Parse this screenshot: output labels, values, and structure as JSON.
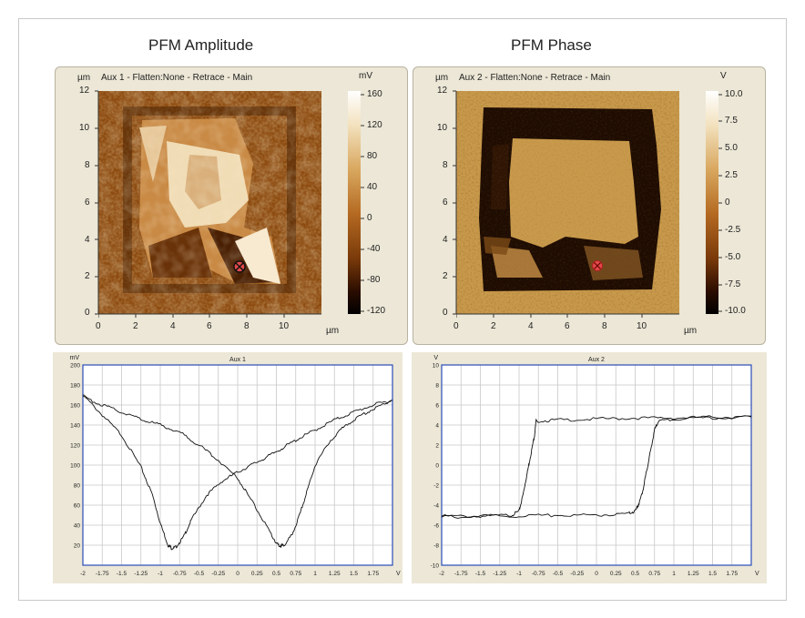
{
  "titles": {
    "left": "PFM Amplitude",
    "right": "PFM Phase"
  },
  "left_image": {
    "unit_label": "µm",
    "header": "Aux 1  -  Flatten:None  -  Retrace  -  Main",
    "cbar_unit": "mV",
    "cbar_ticks": [
      "160",
      "120",
      "80",
      "40",
      "0",
      "-40",
      "-80",
      "-120"
    ],
    "yticks": [
      "12",
      "10",
      "8",
      "6",
      "4",
      "2",
      "0"
    ],
    "xticks": [
      "0",
      "2",
      "4",
      "6",
      "8",
      "10"
    ],
    "x_unit": "µm",
    "marker_icon": "crosshair-marker-icon"
  },
  "right_image": {
    "unit_label": "µm",
    "header": "Aux 2  -  Flatten:None  -  Retrace  -  Main",
    "cbar_unit": "V",
    "cbar_ticks": [
      "10.0",
      "7.5",
      "5.0",
      "2.5",
      "0",
      "-2.5",
      "-5.0",
      "-7.5",
      "-10.0"
    ],
    "yticks": [
      "12",
      "10",
      "8",
      "6",
      "4",
      "2",
      "0"
    ],
    "xticks": [
      "0",
      "2",
      "4",
      "6",
      "8",
      "10"
    ],
    "x_unit": "µm",
    "marker_icon": "crosshair-marker-icon"
  },
  "chart_data": [
    {
      "type": "line",
      "title": "Aux 1",
      "ylabel": "mV",
      "xlabel": "V",
      "xlim": [
        -2,
        2
      ],
      "ylim": [
        0,
        200
      ],
      "xticks": [
        "-2",
        "-1.75",
        "-1.5",
        "-1.25",
        "-1",
        "-0.75",
        "-0.5",
        "-0.25",
        "0",
        "0.25",
        "0.5",
        "0.75",
        "1",
        "1.25",
        "1.5",
        "1.75"
      ],
      "yticks": [
        "200",
        "180",
        "160",
        "140",
        "120",
        "100",
        "80",
        "60",
        "40",
        "20"
      ],
      "series": [
        {
          "x": [
            -2,
            -1.75,
            -1.5,
            -1.25,
            -1.1,
            -1.0,
            -0.9,
            -0.85,
            -0.8,
            -0.7,
            -0.6,
            -0.4,
            -0.2,
            0,
            0.2,
            0.4,
            0.6,
            0.8,
            1.0,
            1.25,
            1.5,
            1.75,
            2
          ],
          "y": [
            170,
            150,
            130,
            98,
            70,
            42,
            20,
            17,
            18,
            28,
            45,
            70,
            84,
            93,
            101,
            109,
            118,
            127,
            135,
            145,
            153,
            160,
            165
          ]
        },
        {
          "x": [
            -2,
            -1.75,
            -1.5,
            -1.25,
            -1.0,
            -0.75,
            -0.5,
            -0.25,
            0,
            0.2,
            0.4,
            0.5,
            0.55,
            0.6,
            0.7,
            0.8,
            0.9,
            1.0,
            1.2,
            1.4,
            1.6,
            1.8,
            2
          ],
          "y": [
            168,
            160,
            153,
            146,
            140,
            133,
            120,
            105,
            87,
            62,
            35,
            22,
            19,
            20,
            30,
            50,
            75,
            100,
            125,
            140,
            150,
            158,
            165
          ]
        }
      ]
    },
    {
      "type": "line",
      "title": "Aux 2",
      "ylabel": "V",
      "xlabel": "V",
      "xlim": [
        -2,
        2
      ],
      "ylim": [
        -10,
        10
      ],
      "xticks": [
        "-2",
        "-1.75",
        "-1.5",
        "-1.25",
        "-1",
        "-0.75",
        "-0.5",
        "-0.25",
        "0",
        "0.25",
        "0.5",
        "0.75",
        "1",
        "1.25",
        "1.5",
        "1.75"
      ],
      "yticks": [
        "10",
        "8",
        "6",
        "4",
        "2",
        "0",
        "-2",
        "-4",
        "-6",
        "-8",
        "-10"
      ],
      "series": [
        {
          "x": [
            -2,
            -1.5,
            -1.1,
            -1.0,
            -0.95,
            -0.9,
            -0.85,
            -0.8,
            -0.78,
            -0.5,
            0,
            0.5,
            1.0,
            1.5,
            2
          ],
          "y": [
            -5.1,
            -5.1,
            -5.0,
            -4.6,
            -3.0,
            -1.0,
            1.0,
            3.0,
            4.4,
            4.5,
            4.6,
            4.7,
            4.7,
            4.8,
            4.8
          ]
        },
        {
          "x": [
            2,
            1.5,
            1.0,
            0.8,
            0.75,
            0.7,
            0.65,
            0.6,
            0.55,
            0.5,
            0.4,
            0.0,
            -0.5,
            -1.0,
            -1.5,
            -2
          ],
          "y": [
            4.8,
            4.7,
            4.6,
            4.4,
            3.5,
            1.5,
            -0.5,
            -2.5,
            -3.8,
            -4.6,
            -4.9,
            -5.0,
            -5.0,
            -5.1,
            -5.1,
            -5.2
          ]
        }
      ]
    }
  ]
}
